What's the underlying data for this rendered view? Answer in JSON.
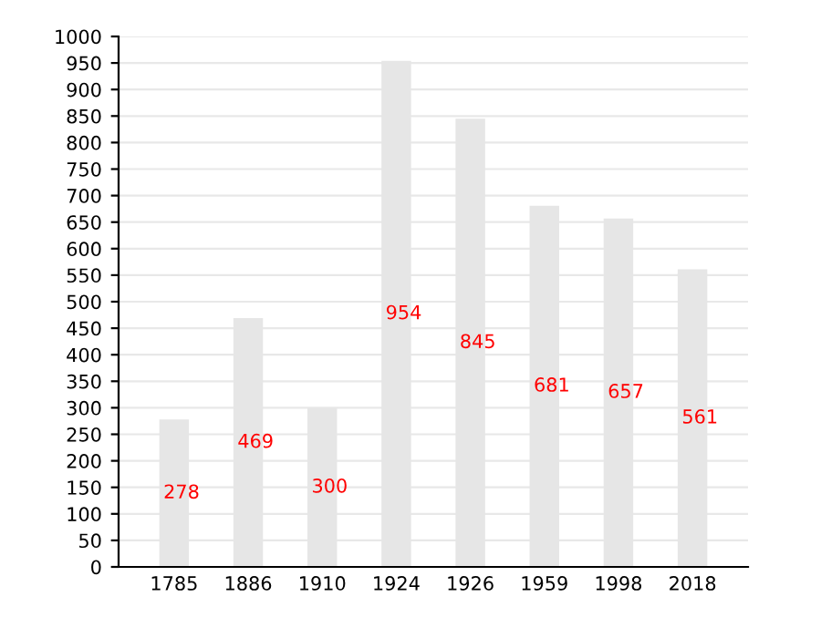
{
  "chart_data": {
    "type": "bar",
    "categories": [
      "1785",
      "1886",
      "1910",
      "1924",
      "1926",
      "1959",
      "1998",
      "2018"
    ],
    "values": [
      278,
      469,
      300,
      954,
      845,
      681,
      657,
      561
    ],
    "color": "#e6e6e6",
    "data_labels": true,
    "grid": "y",
    "legend": false,
    "ylim": [
      0,
      1000
    ],
    "yticks": [
      0,
      50,
      100,
      150,
      200,
      250,
      300,
      350,
      400,
      450,
      500,
      550,
      600,
      650,
      700,
      750,
      800,
      850,
      900,
      950,
      1000
    ]
  }
}
